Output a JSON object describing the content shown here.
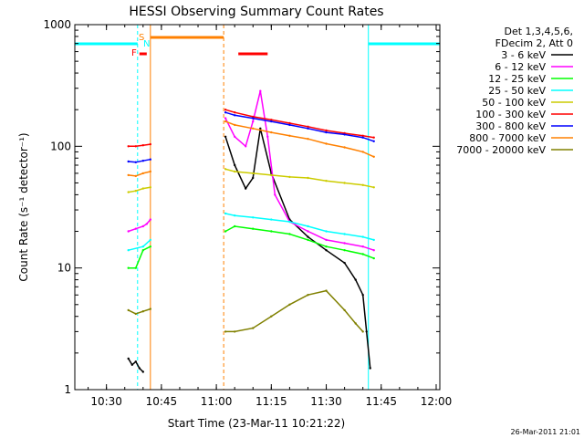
{
  "chart_data": {
    "type": "line",
    "title": "HESSI Observing Summary Count Rates",
    "xlabel": "Start Time (23-Mar-11 10:21:22)",
    "ylabel": "Count Rate (s⁻¹ detector⁻¹)",
    "y_scale": "log",
    "ylim": [
      1,
      1000
    ],
    "xlim": [
      "10:21:22",
      "12:01:00"
    ],
    "x_ticks": [
      "10:30",
      "10:45",
      "11:00",
      "11:15",
      "11:30",
      "11:45",
      "12:00"
    ],
    "y_ticks": [
      "1",
      "10",
      "100",
      "1000"
    ],
    "legend_header": [
      "Det 1,3,4,5,6,",
      "FDecim 2, Att 0"
    ],
    "legend_placement": "right",
    "timestamp": "26-Mar-2011 21:01",
    "flags": [
      "S",
      "N",
      "F"
    ],
    "series": [
      {
        "name": "3 - 6 keV",
        "color": "#000000",
        "segments": [
          {
            "x": [
              "10:36:00",
              "10:37:00",
              "10:38:00",
              "10:39:00",
              "10:40:00"
            ],
            "y": [
              1.8,
              1.6,
              1.7,
              1.5,
              1.4
            ]
          },
          {
            "x": [
              "11:02:30",
              "11:05:00",
              "11:08:00",
              "11:10:00",
              "11:12:00",
              "11:15:00",
              "11:20:00",
              "11:25:00",
              "11:30:00",
              "11:35:00",
              "11:38:00",
              "11:40:00",
              "11:41:00",
              "11:42:00"
            ],
            "y": [
              120,
              70,
              45,
              55,
              140,
              60,
              25,
              18,
              14,
              11,
              8,
              6,
              3,
              1.5
            ]
          }
        ]
      },
      {
        "name": "6 - 12 keV",
        "color": "#ff00ff",
        "segments": [
          {
            "x": [
              "10:36:00",
              "10:38:00",
              "10:40:00",
              "10:41:00",
              "10:42:00"
            ],
            "y": [
              20,
              21,
              22,
              23,
              25
            ]
          },
          {
            "x": [
              "11:02:30",
              "11:05:00",
              "11:08:00",
              "11:10:00",
              "11:12:00",
              "11:14:00",
              "11:16:00",
              "11:20:00",
              "11:25:00",
              "11:30:00",
              "11:35:00",
              "11:40:00",
              "11:43:00"
            ],
            "y": [
              170,
              120,
              100,
              160,
              285,
              120,
              40,
              24,
              20,
              17,
              16,
              15,
              14
            ]
          }
        ]
      },
      {
        "name": "12 - 25 keV",
        "color": "#00ff00",
        "segments": [
          {
            "x": [
              "10:36:00",
              "10:38:00",
              "10:40:00",
              "10:42:00"
            ],
            "y": [
              10,
              10,
              14,
              15
            ]
          },
          {
            "x": [
              "11:02:30",
              "11:05:00",
              "11:10:00",
              "11:15:00",
              "11:20:00",
              "11:25:00",
              "11:30:00",
              "11:35:00",
              "11:40:00",
              "11:43:00"
            ],
            "y": [
              20,
              22,
              21,
              20,
              19,
              17,
              15,
              14,
              13,
              12
            ]
          }
        ]
      },
      {
        "name": "25 - 50 keV",
        "color": "#00ffff",
        "segments": [
          {
            "x": [
              "10:36:00",
              "10:40:00",
              "10:42:00"
            ],
            "y": [
              14,
              15,
              17
            ]
          },
          {
            "x": [
              "11:02:30",
              "11:05:00",
              "11:10:00",
              "11:15:00",
              "11:20:00",
              "11:25:00",
              "11:30:00",
              "11:35:00",
              "11:40:00",
              "11:43:00"
            ],
            "y": [
              28,
              27,
              26,
              25,
              24,
              22,
              20,
              19,
              18,
              17
            ]
          }
        ]
      },
      {
        "name": "50 - 100 keV",
        "color": "#cccc00",
        "segments": [
          {
            "x": [
              "10:36:00",
              "10:38:00",
              "10:40:00",
              "10:42:00"
            ],
            "y": [
              42,
              43,
              45,
              46
            ]
          },
          {
            "x": [
              "11:02:30",
              "11:05:00",
              "11:10:00",
              "11:15:00",
              "11:20:00",
              "11:25:00",
              "11:30:00",
              "11:35:00",
              "11:40:00",
              "11:43:00"
            ],
            "y": [
              65,
              62,
              60,
              58,
              56,
              55,
              52,
              50,
              48,
              46
            ]
          }
        ]
      },
      {
        "name": "100 - 300 keV",
        "color": "#ff0000",
        "segments": [
          {
            "x": [
              "10:36:00",
              "10:38:00",
              "10:40:00",
              "10:42:00"
            ],
            "y": [
              100,
              100,
              102,
              104
            ]
          },
          {
            "x": [
              "11:02:30",
              "11:05:00",
              "11:10:00",
              "11:15:00",
              "11:20:00",
              "11:25:00",
              "11:30:00",
              "11:35:00",
              "11:40:00",
              "11:43:00"
            ],
            "y": [
              200,
              190,
              175,
              165,
              155,
              145,
              135,
              128,
              122,
              118
            ]
          }
        ]
      },
      {
        "name": "300 - 800 keV",
        "color": "#0000ff",
        "segments": [
          {
            "x": [
              "10:36:00",
              "10:38:00",
              "10:40:00",
              "10:42:00"
            ],
            "y": [
              75,
              74,
              76,
              78
            ]
          },
          {
            "x": [
              "11:02:30",
              "11:05:00",
              "11:10:00",
              "11:15:00",
              "11:20:00",
              "11:25:00",
              "11:30:00",
              "11:35:00",
              "11:40:00",
              "11:43:00"
            ],
            "y": [
              190,
              180,
              170,
              160,
              150,
              140,
              130,
              125,
              118,
              110
            ]
          }
        ]
      },
      {
        "name": "800 - 7000 keV",
        "color": "#ff8000",
        "segments": [
          {
            "x": [
              "10:36:00",
              "10:38:00",
              "10:40:00",
              "10:42:00"
            ],
            "y": [
              58,
              57,
              60,
              62
            ]
          },
          {
            "x": [
              "11:02:30",
              "11:05:00",
              "11:10:00",
              "11:15:00",
              "11:20:00",
              "11:25:00",
              "11:30:00",
              "11:35:00",
              "11:40:00",
              "11:43:00"
            ],
            "y": [
              160,
              150,
              140,
              130,
              122,
              115,
              105,
              98,
              90,
              82
            ]
          }
        ]
      },
      {
        "name": "7000 - 20000 keV",
        "color": "#808000",
        "segments": [
          {
            "x": [
              "10:36:00",
              "10:38:00",
              "10:40:00",
              "10:42:00"
            ],
            "y": [
              4.5,
              4.2,
              4.4,
              4.6
            ]
          },
          {
            "x": [
              "11:02:30",
              "11:05:00",
              "11:10:00",
              "11:15:00",
              "11:20:00",
              "11:25:00",
              "11:30:00",
              "11:35:00",
              "11:38:00",
              "11:40:00"
            ],
            "y": [
              3,
              3,
              3.2,
              4,
              5,
              6,
              6.5,
              4.5,
              3.5,
              3
            ]
          }
        ]
      }
    ],
    "markers": {
      "saa_cyan_solid": [
        [
          "10:21:22",
          "10:38:30"
        ],
        [
          "11:41:30",
          "12:01:00"
        ]
      ],
      "orange_top_bar": [
        "10:42:00",
        "11:02:00"
      ],
      "red_flare_bars": [
        [
          "10:39:00",
          "10:41:00"
        ],
        [
          "11:06:00",
          "11:14:00"
        ]
      ]
    }
  }
}
